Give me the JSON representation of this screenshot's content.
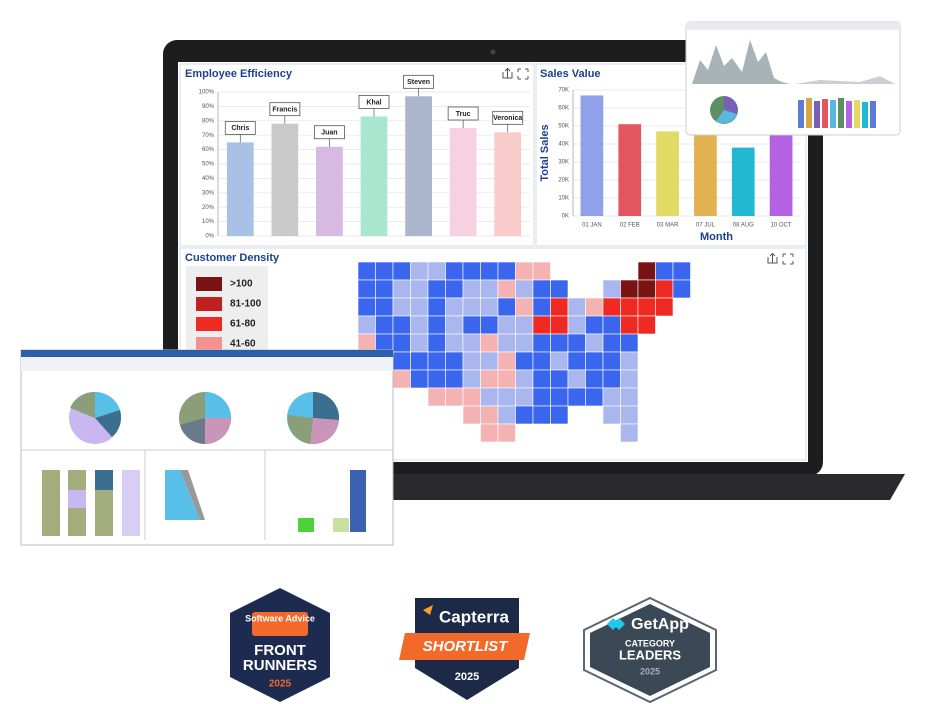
{
  "chart_data": [
    {
      "type": "bar",
      "title": "Employee Efficiency",
      "categories": [
        "Chris",
        "Francis",
        "Juan",
        "Khal",
        "Steven",
        "Truc",
        "Veronica"
      ],
      "values": [
        65,
        78,
        62,
        83,
        97,
        75,
        72
      ],
      "colors": [
        "#a9c1e6",
        "#c9c9c9",
        "#d8b9e2",
        "#a9e6cf",
        "#abb5cc",
        "#f8d1e1",
        "#f9cbcb"
      ],
      "ylim": [
        0,
        100
      ],
      "yticks": [
        {
          "value": 0,
          "label": "0%"
        },
        {
          "value": 10,
          "label": "10%"
        },
        {
          "value": 20,
          "label": "20%"
        },
        {
          "value": 30,
          "label": "30%"
        },
        {
          "value": 40,
          "label": "40%"
        },
        {
          "value": 50,
          "label": "50%"
        },
        {
          "value": 60,
          "label": "60%"
        },
        {
          "value": 70,
          "label": "70%"
        },
        {
          "value": 80,
          "label": "80%"
        },
        {
          "value": 90,
          "label": "90%"
        },
        {
          "value": 100,
          "label": "100%"
        }
      ],
      "grid": true
    },
    {
      "type": "bar",
      "title": "Sales Value",
      "categories": [
        "01 JAN",
        "02 FEB",
        "03 MAR",
        "07 JUL",
        "08 AUG",
        "10 OCT"
      ],
      "values": [
        67000,
        51000,
        47000,
        45000,
        38000,
        46000
      ],
      "colors": [
        "#8fa1e9",
        "#e2575f",
        "#e2da62",
        "#e2b151",
        "#22b8d1",
        "#b262e2"
      ],
      "ylim": [
        0,
        70000
      ],
      "yticks": [
        {
          "value": 0,
          "label": "0K"
        },
        {
          "value": 10000,
          "label": "10K"
        },
        {
          "value": 20000,
          "label": "20K"
        },
        {
          "value": 30000,
          "label": "30K"
        },
        {
          "value": 40000,
          "label": "40K"
        },
        {
          "value": 50000,
          "label": "50K"
        },
        {
          "value": 60000,
          "label": "60K"
        },
        {
          "value": 70000,
          "label": "70K"
        }
      ],
      "y_label": "Total Sales",
      "x_label": "Month",
      "grid": true
    }
  ],
  "map": {
    "title": "Customer Density",
    "legend": [
      {
        "label": ">100",
        "color": "#7a1414"
      },
      {
        "label": "81-100",
        "color": "#c0201e"
      },
      {
        "label": "61-80",
        "color": "#ee2a22"
      },
      {
        "label": "41-60",
        "color": "#f49090"
      }
    ]
  },
  "badges": [
    {
      "brand": "Software Advice",
      "line1": "FRONT",
      "line2": "RUNNERS",
      "year": "2025"
    },
    {
      "brand": "Capterra",
      "line1": "SHORTLIST",
      "year": "2025"
    },
    {
      "brand": "GetApp",
      "line1": "CATEGORY",
      "line2": "LEADERS",
      "year": "2025"
    }
  ]
}
